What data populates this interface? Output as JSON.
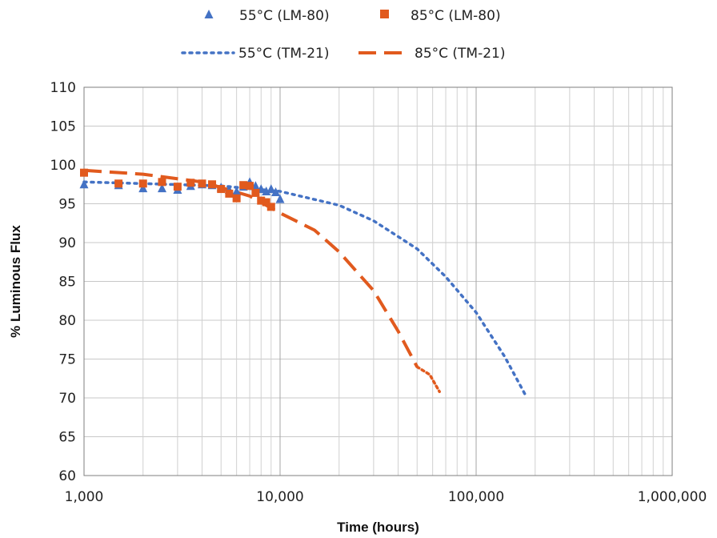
{
  "chart_data": {
    "type": "scatter",
    "title": "",
    "xlabel": "Time (hours)",
    "ylabel": "% Luminous Flux",
    "x_scale": "log",
    "xlim": [
      1000,
      1000000
    ],
    "ylim": [
      60,
      110
    ],
    "x_ticks": [
      1000,
      10000,
      100000,
      1000000
    ],
    "x_tick_labels": [
      "1,000",
      "10,000",
      "100,000",
      "1,000,000"
    ],
    "y_ticks": [
      60,
      65,
      70,
      75,
      80,
      85,
      90,
      95,
      100,
      105,
      110
    ],
    "y_tick_labels": [
      "60",
      "65",
      "70",
      "75",
      "80",
      "85",
      "90",
      "95",
      "100",
      "105",
      "110"
    ],
    "grid": true,
    "legend_position": "top",
    "series": [
      {
        "name": "55°C (LM-80)",
        "kind": "markers",
        "marker": "triangle",
        "color": "#4472C4",
        "x": [
          1000,
          1500,
          2000,
          2500,
          3000,
          3500,
          4000,
          4500,
          5000,
          5500,
          6000,
          6500,
          7000,
          7500,
          8000,
          8500,
          9000,
          9500,
          10000
        ],
        "y": [
          97.5,
          97.4,
          97.0,
          97.0,
          96.8,
          97.3,
          97.5,
          97.4,
          97.1,
          96.8,
          96.6,
          97.2,
          97.8,
          97.3,
          96.9,
          96.6,
          96.9,
          96.5,
          95.6
        ]
      },
      {
        "name": "85°C (LM-80)",
        "kind": "markers",
        "marker": "square",
        "color": "#E15A1E",
        "x": [
          1000,
          1500,
          2000,
          2500,
          3000,
          3500,
          4000,
          4500,
          5000,
          5500,
          6000,
          6500,
          7000,
          7500,
          8000,
          8500,
          9000
        ],
        "y": [
          99.0,
          97.6,
          97.6,
          97.8,
          97.2,
          97.7,
          97.6,
          97.5,
          96.9,
          96.3,
          95.7,
          97.4,
          97.3,
          96.4,
          95.4,
          95.2,
          94.6
        ]
      },
      {
        "name": "55°C (TM-21)",
        "kind": "line",
        "dash": "dotted",
        "color": "#4472C4",
        "x": [
          1000,
          2000,
          5000,
          10000,
          20000,
          30000,
          50000,
          70000,
          100000,
          140000,
          180000
        ],
        "y": [
          97.8,
          97.6,
          97.3,
          96.6,
          94.8,
          92.8,
          89.2,
          85.6,
          81.0,
          75.3,
          70.2
        ]
      },
      {
        "name": "85°C (TM-21)",
        "kind": "line",
        "dash": "dashed",
        "dash_end": "dotted",
        "color": "#E15A1E",
        "x": [
          1000,
          2000,
          4000,
          7000,
          10000,
          15000,
          20000,
          30000,
          40000,
          50000,
          58000,
          65000
        ],
        "y": [
          99.3,
          98.8,
          97.8,
          96.0,
          93.8,
          91.6,
          88.8,
          83.8,
          78.6,
          74.0,
          73.0,
          70.8
        ]
      }
    ]
  }
}
